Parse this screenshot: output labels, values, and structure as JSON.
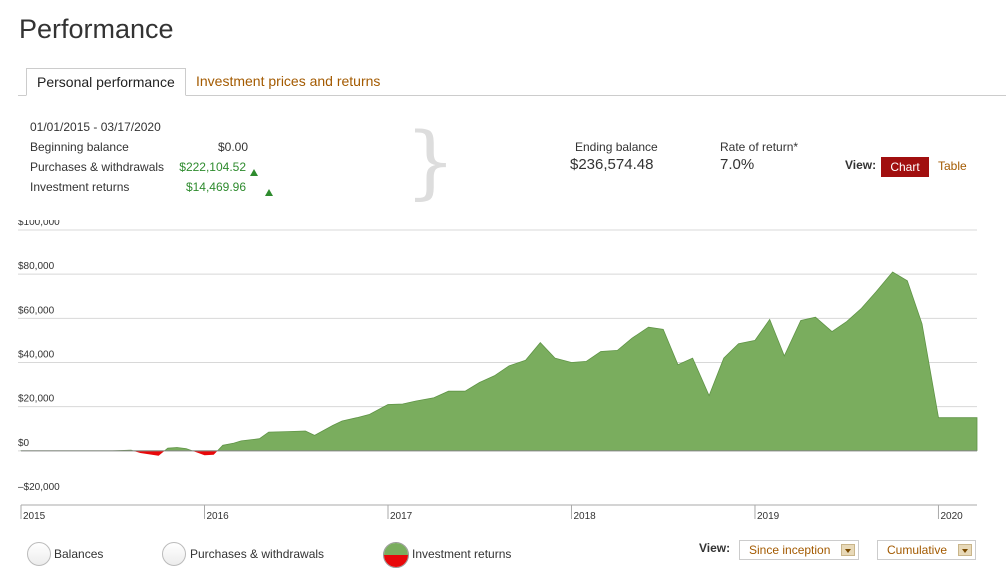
{
  "page": {
    "title": "Performance"
  },
  "tabs": [
    {
      "label": "Personal performance",
      "active": true
    },
    {
      "label": "Investment prices and returns",
      "active": false
    }
  ],
  "summary": {
    "date_range": "01/01/2015 - 03/17/2020",
    "rows": [
      {
        "label": "Beginning balance",
        "value": "$0.00",
        "trend": ""
      },
      {
        "label": "Purchases & withdrawals",
        "value": "$222,104.52",
        "trend": "up"
      },
      {
        "label": "Investment returns",
        "value": "$14,469.96",
        "trend": "up"
      }
    ],
    "ending_balance_label": "Ending balance",
    "ending_balance_value": "$236,574.48",
    "rate_label": "Rate of return*",
    "rate_value": "7.0%"
  },
  "view_toggle": {
    "label": "View:",
    "chart": "Chart",
    "table": "Table",
    "selected": "Chart"
  },
  "legend": {
    "items": [
      {
        "label": "Balances",
        "selected": false
      },
      {
        "label": "Purchases & withdrawals",
        "selected": false
      },
      {
        "label": "Investment returns",
        "selected": true
      }
    ]
  },
  "bottom_controls": {
    "view_label": "View:",
    "range_select": "Since inception",
    "mode_select": "Cumulative"
  },
  "colors": {
    "positive": "#7aad5e",
    "negative": "#e8080a",
    "accent": "#a10f0f",
    "link": "#a35a00"
  },
  "chart_data": {
    "type": "area",
    "title": "",
    "y_tick_labels": [
      "$100,000",
      "$80,000",
      "$60,000",
      "$40,000",
      "$20,000",
      "$0",
      "–$20,000"
    ],
    "y_ticks": [
      100000,
      80000,
      60000,
      40000,
      20000,
      0,
      -20000
    ],
    "ylim": [
      -20000,
      100000
    ],
    "x_tick_labels": [
      "2015",
      "2016",
      "2017",
      "2018",
      "2019",
      "2020"
    ],
    "x_ticks": [
      2015,
      2016,
      2017,
      2018,
      2019,
      2020
    ],
    "xlim": [
      2015,
      2020.21
    ],
    "grid": true,
    "series": [
      {
        "x": [
          2015.0,
          2015.1,
          2015.2,
          2015.3,
          2015.4,
          2015.5,
          2015.6,
          2015.65,
          2015.75,
          2015.8,
          2015.85,
          2015.9,
          2015.95,
          2016.0,
          2016.05,
          2016.1,
          2016.16,
          2016.2,
          2016.3,
          2016.35,
          2016.45,
          2016.55,
          2016.6,
          2016.7,
          2016.75,
          2016.83,
          2016.9,
          2017.0,
          2017.08,
          2017.15,
          2017.25,
          2017.33,
          2017.42,
          2017.5,
          2017.58,
          2017.66,
          2017.75,
          2017.83,
          2017.91,
          2018.0,
          2018.08,
          2018.16,
          2018.25,
          2018.33,
          2018.42,
          2018.5,
          2018.58,
          2018.66,
          2018.75,
          2018.83,
          2018.91,
          2019.0,
          2019.08,
          2019.16,
          2019.25,
          2019.33,
          2019.42,
          2019.5,
          2019.58,
          2019.66,
          2019.75,
          2019.83,
          2019.91,
          2020.0,
          2020.08,
          2020.16,
          2020.21
        ],
        "y": [
          0,
          0,
          0,
          0,
          0,
          0,
          300,
          -1000,
          -2200,
          1200,
          1500,
          1000,
          -500,
          -2000,
          -1800,
          2500,
          3500,
          4500,
          5500,
          8500,
          8700,
          9000,
          7000,
          11500,
          13500,
          15000,
          16500,
          21000,
          21200,
          22500,
          24000,
          27000,
          27000,
          31000,
          34000,
          38500,
          41000,
          49000,
          42000,
          40000,
          40500,
          45000,
          45500,
          51000,
          56000,
          55000,
          39000,
          42000,
          25000,
          42000,
          48500,
          50000,
          59500,
          43000,
          59000,
          60500,
          54000,
          58500,
          64500,
          72000,
          81000,
          77000,
          57500,
          15000,
          15000,
          15000,
          15000
        ]
      }
    ]
  }
}
